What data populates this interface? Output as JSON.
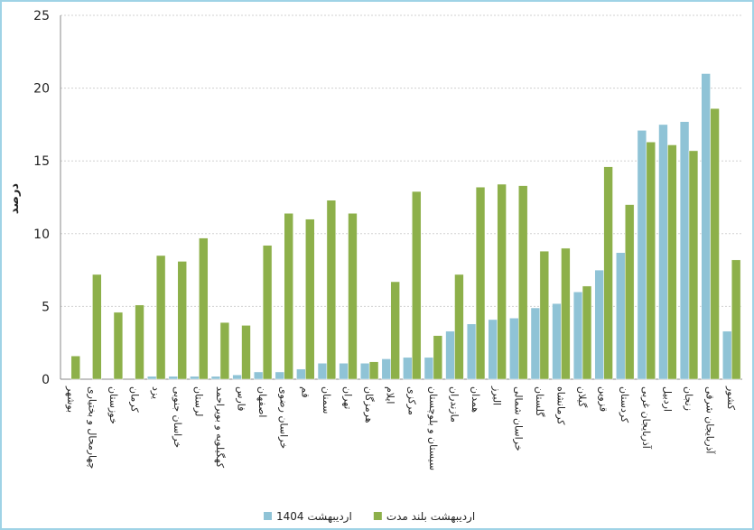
{
  "chart_data": {
    "type": "bar",
    "y_label": "درصد",
    "categories": [
      "بوشهر",
      "چهارمحال و بختیاری",
      "خوزستان",
      "کرمان",
      "یزد",
      "خراسان جنوبی",
      "لرستان",
      "کهگیلویه و بویراحمد",
      "فارس",
      "اصفهان",
      "خراسان رضوی",
      "قم",
      "سمنان",
      "تهران",
      "هرمزگان",
      "ایلام",
      "مرکزی",
      "سیستان و بلوچستان",
      "مازندران",
      "همدان",
      "البرز",
      "خراسان شمالی",
      "گلستان",
      "کرمانشاه",
      "گیلان",
      "قزوین",
      "کردستان",
      "آذربایجان غربی",
      "اردبیل",
      "زنجان",
      "آذربایجان شرقی",
      "کشور"
    ],
    "series": [
      {
        "name": "اردیبهشت 1404",
        "color": "#8fc3d6",
        "values": [
          0,
          0,
          0,
          0,
          0.2,
          0.2,
          0.2,
          0.2,
          0.3,
          0.5,
          0.5,
          0.7,
          1.1,
          1.1,
          1.1,
          1.4,
          1.5,
          1.5,
          3.3,
          3.8,
          4.1,
          4.2,
          4.9,
          5.2,
          6.0,
          7.5,
          8.7,
          17.1,
          17.5,
          17.7,
          21.0,
          3.3
        ]
      },
      {
        "name": "اردیبهشت بلند مدت",
        "color": "#8db04a",
        "values": [
          1.6,
          7.2,
          4.6,
          5.1,
          8.5,
          8.1,
          9.7,
          3.9,
          3.7,
          9.2,
          11.4,
          11.0,
          12.3,
          11.4,
          1.2,
          6.7,
          12.9,
          3.0,
          7.2,
          13.2,
          13.4,
          13.3,
          8.8,
          9.0,
          6.4,
          14.6,
          12.0,
          16.3,
          16.1,
          15.7,
          18.6,
          8.2
        ]
      }
    ],
    "ylim": [
      0,
      25
    ],
    "yticks": [
      0,
      5,
      10,
      15,
      20,
      25
    ],
    "grid": true
  }
}
